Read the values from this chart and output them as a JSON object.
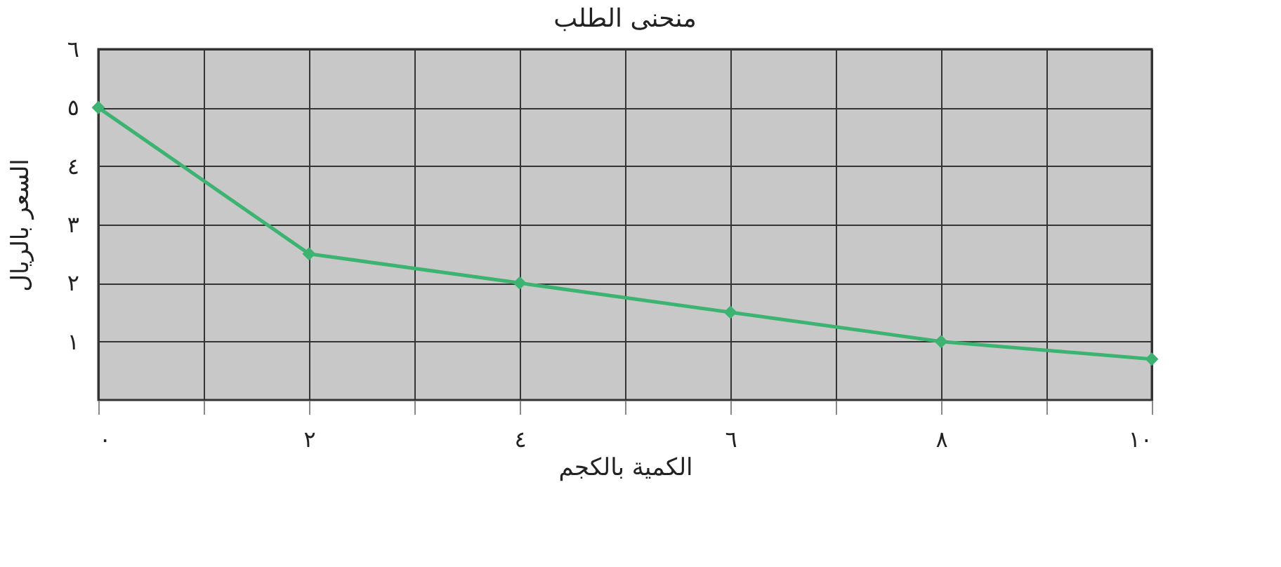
{
  "chart_data": {
    "type": "line",
    "title": "منحنى الطلب",
    "xlabel": "الكمية بالكجم",
    "ylabel": "السعر بالريال",
    "x": [
      0,
      2,
      4,
      6,
      8,
      10
    ],
    "series": [
      {
        "color": "#3cb371",
        "values": [
          5,
          2.5,
          2,
          1.5,
          1,
          0.7
        ]
      }
    ],
    "xlim": [
      0,
      10
    ],
    "xticks": [
      {
        "value": 0,
        "label": "٠"
      },
      {
        "value": 1,
        "label": null
      },
      {
        "value": 2,
        "label": "٢"
      },
      {
        "value": 3,
        "label": null
      },
      {
        "value": 4,
        "label": "٤"
      },
      {
        "value": 5,
        "label": null
      },
      {
        "value": 6,
        "label": "٦"
      },
      {
        "value": 7,
        "label": null
      },
      {
        "value": 8,
        "label": "٨"
      },
      {
        "value": 9,
        "label": null
      },
      {
        "value": 10,
        "label": "١٠"
      }
    ],
    "ylim": [
      0,
      6
    ],
    "yticks": [
      {
        "value": 1,
        "label": "١"
      },
      {
        "value": 2,
        "label": "٢"
      },
      {
        "value": 3,
        "label": "٣"
      },
      {
        "value": 4,
        "label": "٤"
      },
      {
        "value": 5,
        "label": "٥"
      },
      {
        "value": 6,
        "label": "٦"
      }
    ],
    "grid": true,
    "marker": "diamond",
    "line_style": "solid"
  }
}
